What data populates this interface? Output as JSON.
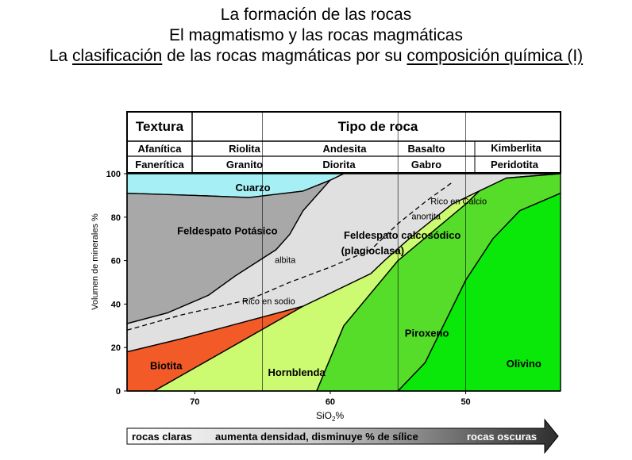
{
  "title": {
    "line1": "La formación de las rocas",
    "line2": "El magmatismo y las rocas magmáticas",
    "line3_parts": [
      "La ",
      "clasificación",
      " de las rocas magmáticas por su ",
      "composición química (I)"
    ]
  },
  "table": {
    "texture_header": "Textura",
    "rock_type_header": "Tipo de roca",
    "rows": [
      {
        "texture": "Afanítica",
        "rocks": [
          "Riolita",
          "Andesita",
          "Basalto",
          "Kimberlita"
        ]
      },
      {
        "texture": "Fanerítica",
        "rocks": [
          "Granito",
          "Diorita",
          "Gabro",
          "Peridotita"
        ]
      }
    ]
  },
  "chart_data": {
    "type": "area",
    "xlabel": "SiO2%",
    "xlabel_main": "SiO",
    "xlabel_sub": "2",
    "xlabel_suffix": "%",
    "ylabel": "Volumen de minerales %",
    "x_reversed": true,
    "xlim": [
      75,
      43
    ],
    "ylim": [
      0,
      100
    ],
    "x_ticks": [
      70,
      60,
      50
    ],
    "y_ticks": [
      0,
      20,
      40,
      60,
      80,
      100
    ],
    "rock_boundaries_sio2": [
      65,
      55,
      50
    ],
    "regions": [
      {
        "name": "Cuarzo",
        "color": "#a6f0f5",
        "polygon": [
          [
            75,
            100
          ],
          [
            59,
            100
          ],
          [
            60,
            97
          ],
          [
            62,
            92
          ],
          [
            66,
            89
          ],
          [
            70,
            90
          ],
          [
            75,
            91
          ]
        ]
      },
      {
        "name": "Feldespato Potásico",
        "color": "#a8a8a8",
        "polygon": [
          [
            75,
            91
          ],
          [
            70,
            90
          ],
          [
            66,
            89
          ],
          [
            62,
            92
          ],
          [
            60,
            97
          ],
          [
            62,
            83
          ],
          [
            63,
            72
          ],
          [
            64,
            65
          ],
          [
            67,
            53
          ],
          [
            69,
            44
          ],
          [
            72,
            36
          ],
          [
            75,
            31
          ]
        ]
      },
      {
        "name": "Feldespato calcosódico (plagioclasa)",
        "color": "#e0e0e0",
        "polygon": [
          [
            75,
            31
          ],
          [
            72,
            36
          ],
          [
            69,
            44
          ],
          [
            67,
            53
          ],
          [
            64,
            65
          ],
          [
            63,
            72
          ],
          [
            62,
            83
          ],
          [
            60,
            97
          ],
          [
            59,
            100
          ],
          [
            43,
            100
          ],
          [
            47,
            98
          ],
          [
            49,
            92
          ],
          [
            51,
            86
          ],
          [
            54,
            71
          ],
          [
            56,
            60
          ],
          [
            57,
            54
          ],
          [
            60,
            45
          ],
          [
            62,
            39
          ],
          [
            68,
            29
          ],
          [
            71,
            24
          ],
          [
            75,
            18
          ]
        ]
      },
      {
        "name": "Biotita",
        "color": "#f25a28",
        "polygon": [
          [
            75,
            18
          ],
          [
            71,
            24
          ],
          [
            68,
            29
          ],
          [
            62,
            39
          ],
          [
            73,
            0
          ],
          [
            75,
            0
          ]
        ]
      },
      {
        "name": "Hornblenda",
        "color": "#ccfa70",
        "polygon": [
          [
            73,
            0
          ],
          [
            62,
            39
          ],
          [
            60,
            45
          ],
          [
            57,
            54
          ],
          [
            56,
            60
          ],
          [
            54,
            71
          ],
          [
            51,
            86
          ],
          [
            49,
            92
          ],
          [
            50,
            86
          ],
          [
            55,
            60
          ],
          [
            59,
            30
          ],
          [
            61,
            0
          ]
        ]
      },
      {
        "name": "Piroxeno",
        "color": "#55dd2a",
        "polygon": [
          [
            61,
            0
          ],
          [
            59,
            30
          ],
          [
            55,
            60
          ],
          [
            50,
            86
          ],
          [
            49,
            92
          ],
          [
            47,
            98
          ],
          [
            43,
            100
          ],
          [
            43,
            91
          ],
          [
            46,
            83
          ],
          [
            48,
            70
          ],
          [
            50,
            51
          ],
          [
            53,
            13
          ],
          [
            55,
            0
          ]
        ]
      },
      {
        "name": "Olivino",
        "color": "#0ae80a",
        "polygon": [
          [
            55,
            0
          ],
          [
            53,
            13
          ],
          [
            50,
            51
          ],
          [
            48,
            70
          ],
          [
            46,
            83
          ],
          [
            43,
            91
          ],
          [
            43,
            0
          ]
        ]
      }
    ],
    "boundary_lines": [
      {
        "name": "Rico en sodio - Rico en Calcio",
        "dashed": true,
        "points": [
          [
            75,
            28
          ],
          [
            71,
            35
          ],
          [
            66,
            42
          ],
          [
            63,
            50
          ],
          [
            60,
            57
          ],
          [
            57,
            65
          ],
          [
            55,
            77
          ],
          [
            53,
            87
          ],
          [
            51,
            96
          ]
        ]
      }
    ],
    "annotations": [
      {
        "text": "Cuarzo",
        "x": 67,
        "y": 92,
        "bold": true
      },
      {
        "text": "Feldespato Potásico",
        "x": 71.3,
        "y": 72,
        "bold": true
      },
      {
        "text": "albita",
        "x": 64.1,
        "y": 59,
        "bold": false
      },
      {
        "text": "Rico en sodio",
        "x": 66.5,
        "y": 40,
        "bold": false
      },
      {
        "text": "Feldespato calcosódico",
        "x": 59,
        "y": 70,
        "bold": true
      },
      {
        "text": "(plagioclasa)",
        "x": 59.2,
        "y": 63,
        "bold": true
      },
      {
        "text": "Rico en Calcio",
        "x": 52.6,
        "y": 86,
        "bold": false
      },
      {
        "text": "anortita",
        "x": 54,
        "y": 79,
        "bold": false
      },
      {
        "text": "Biotita",
        "x": 73.3,
        "y": 10,
        "bold": true
      },
      {
        "text": "Hornblenda",
        "x": 64.6,
        "y": 7,
        "bold": true
      },
      {
        "text": "Piroxeno",
        "x": 54.5,
        "y": 25,
        "bold": true
      },
      {
        "text": "Olivino",
        "x": 47,
        "y": 11,
        "bold": true
      }
    ]
  },
  "arrow": {
    "left": "rocas claras",
    "middle": "aumenta densidad, disminuye % de sílice",
    "right": "rocas oscuras"
  }
}
